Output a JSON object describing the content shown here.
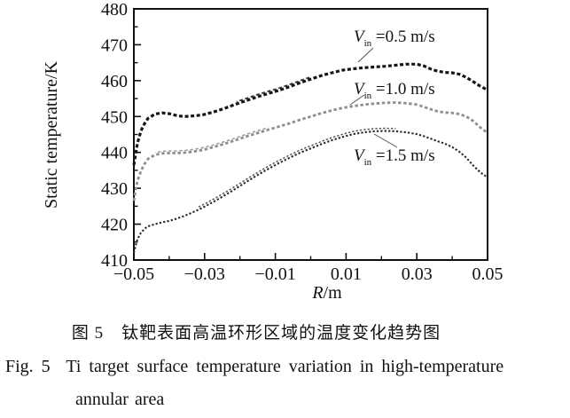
{
  "figure": {
    "caption_zh": "图 5　钛靶表面高温环形区域的温度变化趋势图",
    "caption_en_line1": "Fig. 5  Ti target surface temperature variation in high-temperature",
    "caption_en_line2": "annular area"
  },
  "chart_data": {
    "type": "line",
    "style": "dotted-scatter",
    "xlabel_italic": "R",
    "xlabel_rest": "/m",
    "xlabel": "R/m",
    "ylabel": "Static temperature/K",
    "xlim": [
      -0.05,
      0.05
    ],
    "ylim": [
      410,
      480
    ],
    "grid": "off",
    "x_major_ticks": [
      -0.05,
      -0.03,
      -0.01,
      0.01,
      0.03,
      0.05
    ],
    "x_tick_labels": [
      "−0.05",
      "−0.03",
      "−0.01",
      "0.01",
      "0.03",
      "0.05"
    ],
    "x_minor_ticks": [
      -0.04,
      -0.02,
      0,
      0.02,
      0.04
    ],
    "y_major_ticks": [
      410,
      420,
      430,
      440,
      450,
      460,
      470,
      480
    ],
    "y_minor_ticks": [
      415,
      425,
      435,
      445,
      455,
      465,
      475
    ],
    "x": [
      -0.05,
      -0.0495,
      -0.049,
      -0.048,
      -0.047,
      -0.046,
      -0.044,
      -0.042,
      -0.04,
      -0.038,
      -0.036,
      -0.034,
      -0.032,
      -0.03,
      -0.027,
      -0.024,
      -0.021,
      -0.018,
      -0.015,
      -0.012,
      -0.009,
      -0.006,
      -0.003,
      0.0,
      0.003,
      0.006,
      0.009,
      0.012,
      0.015,
      0.018,
      0.021,
      0.024,
      0.027,
      0.03,
      0.032,
      0.034,
      0.036,
      0.038,
      0.04,
      0.042,
      0.044,
      0.046,
      0.048,
      0.05
    ],
    "series": [
      {
        "name": "Vin = 0.5 m/s",
        "label": {
          "v": "V",
          "sub": "in",
          "rest": " =0.5 m/s"
        },
        "color": "#161616",
        "dash": "4 2.6",
        "width": 3.2,
        "values": [
          436.5,
          439.5,
          442.5,
          446.0,
          448.0,
          449.5,
          450.7,
          451.0,
          450.8,
          450.3,
          450.0,
          450.1,
          450.3,
          450.6,
          451.4,
          452.4,
          453.5,
          454.5,
          455.5,
          456.4,
          457.3,
          458.3,
          459.4,
          460.4,
          461.4,
          462.2,
          462.9,
          463.3,
          463.6,
          463.8,
          464.0,
          464.3,
          464.6,
          464.6,
          464.1,
          463.2,
          462.6,
          462.3,
          462.2,
          461.8,
          460.9,
          459.7,
          458.4,
          457.4
        ]
      },
      {
        "name": "Vin = 1.0 m/s",
        "label": {
          "v": "V",
          "sub": "in",
          "rest": " =1.0 m/s"
        },
        "color": "#8f8f8f",
        "dash": "3.5 2.6",
        "width": 2.8,
        "values": [
          426.5,
          429.5,
          432.0,
          434.8,
          436.8,
          438.2,
          439.3,
          439.7,
          439.8,
          439.8,
          439.9,
          440.1,
          440.4,
          440.8,
          441.6,
          442.5,
          443.5,
          444.5,
          445.4,
          446.3,
          447.2,
          448.1,
          449.1,
          450.0,
          450.9,
          451.7,
          452.4,
          452.9,
          453.3,
          453.6,
          453.8,
          453.9,
          453.7,
          453.3,
          452.7,
          452.0,
          451.4,
          451.1,
          451.0,
          450.7,
          450.0,
          448.7,
          446.9,
          445.4
        ]
      },
      {
        "name": "Vin = 1.5 m/s",
        "label": {
          "v": "V",
          "sub": "in",
          "rest": " =1.5 m/s"
        },
        "color": "#2b2b2b",
        "dash": "2.3 2.1",
        "width": 2.1,
        "values": [
          412.0,
          414.0,
          415.8,
          417.6,
          418.7,
          419.4,
          420.0,
          420.5,
          420.9,
          421.5,
          422.2,
          423.0,
          423.9,
          424.9,
          426.5,
          428.2,
          430.0,
          431.9,
          433.7,
          435.4,
          437.0,
          438.5,
          439.9,
          441.1,
          442.3,
          443.4,
          444.3,
          445.1,
          445.6,
          445.9,
          446.0,
          445.9,
          445.6,
          445.1,
          444.5,
          443.8,
          443.1,
          442.4,
          441.5,
          440.2,
          438.5,
          436.3,
          434.4,
          433.0
        ]
      }
    ]
  }
}
